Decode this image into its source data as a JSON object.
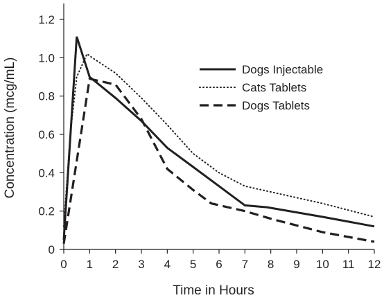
{
  "chart_data": {
    "type": "line",
    "title": "",
    "xlabel": "Time in Hours",
    "ylabel": "Concentration (mcg/mL)",
    "xlim": [
      0,
      12
    ],
    "ylim": [
      0,
      1.2
    ],
    "x_ticks": [
      0,
      1,
      2,
      3,
      4,
      5,
      6,
      7,
      8,
      9,
      10,
      11,
      12
    ],
    "y_ticks": [
      0,
      0.2,
      0.4,
      0.6,
      0.8,
      1.0,
      1.2
    ],
    "y_tick_labels": [
      "0",
      "0.2",
      "0.4",
      "0.6",
      "0.8",
      "1.0",
      "1.2"
    ],
    "grid": false,
    "legend_position": "top-right",
    "series": [
      {
        "name": "Dogs Injectable",
        "style": "solid",
        "points": [
          [
            0,
            0.05
          ],
          [
            0.5,
            1.11
          ],
          [
            1,
            0.9
          ],
          [
            2,
            0.79
          ],
          [
            3,
            0.67
          ],
          [
            4,
            0.53
          ],
          [
            5,
            0.43
          ],
          [
            6,
            0.33
          ],
          [
            7,
            0.23
          ],
          [
            7.85,
            0.22
          ],
          [
            10,
            0.17
          ],
          [
            12,
            0.12
          ]
        ]
      },
      {
        "name": "Cats Tablets",
        "style": "dotted",
        "points": [
          [
            0,
            0.12
          ],
          [
            0.25,
            0.6
          ],
          [
            0.5,
            0.9
          ],
          [
            0.9,
            1.02
          ],
          [
            1.1,
            1.0
          ],
          [
            2,
            0.92
          ],
          [
            3,
            0.79
          ],
          [
            4,
            0.65
          ],
          [
            5,
            0.5
          ],
          [
            6,
            0.4
          ],
          [
            7,
            0.33
          ],
          [
            8,
            0.3
          ],
          [
            10,
            0.24
          ],
          [
            12,
            0.17
          ]
        ]
      },
      {
        "name": "Dogs Tablets",
        "style": "dashed",
        "points": [
          [
            0,
            0.03
          ],
          [
            1,
            0.89
          ],
          [
            2,
            0.86
          ],
          [
            3,
            0.68
          ],
          [
            4,
            0.42
          ],
          [
            5,
            0.31
          ],
          [
            5.7,
            0.24
          ],
          [
            7,
            0.2
          ],
          [
            8,
            0.16
          ],
          [
            10,
            0.09
          ],
          [
            12,
            0.04
          ]
        ]
      }
    ]
  }
}
